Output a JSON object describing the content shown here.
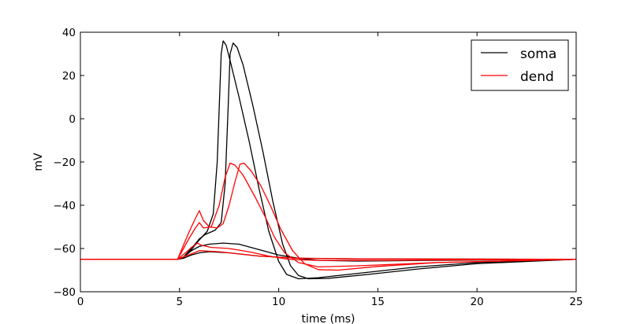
{
  "chart_data": {
    "type": "line",
    "xlabel": "time (ms)",
    "ylabel": "mV",
    "xlim": [
      0,
      25
    ],
    "ylim": [
      -80,
      40
    ],
    "xticks": [
      0,
      5,
      10,
      15,
      20,
      25
    ],
    "yticks": [
      -80,
      -60,
      -40,
      -20,
      0,
      20,
      40
    ],
    "xtick_labels": [
      "0",
      "5",
      "10",
      "15",
      "20",
      "25"
    ],
    "ytick_labels": [
      "−80",
      "−60",
      "−40",
      "−20",
      "0",
      "20",
      "40"
    ],
    "grid": false,
    "legend": {
      "position": "top-right",
      "entries": [
        {
          "label": "soma",
          "color": "#000000"
        },
        {
          "label": "dend",
          "color": "#ff0000"
        }
      ]
    },
    "series": [
      {
        "group": "soma",
        "color": "#000000",
        "points": [
          [
            0,
            -65
          ],
          [
            4.9,
            -65
          ],
          [
            5.2,
            -64.5
          ],
          [
            5.6,
            -63
          ],
          [
            6.0,
            -62
          ],
          [
            6.5,
            -61.5
          ],
          [
            7.5,
            -62
          ],
          [
            9,
            -63.5
          ],
          [
            11,
            -64.5
          ],
          [
            14,
            -64.8
          ],
          [
            25,
            -65
          ]
        ]
      },
      {
        "group": "soma",
        "color": "#000000",
        "points": [
          [
            0,
            -65
          ],
          [
            4.9,
            -65
          ],
          [
            5.2,
            -64
          ],
          [
            5.6,
            -61
          ],
          [
            6.0,
            -59
          ],
          [
            6.5,
            -58
          ],
          [
            7.2,
            -57.5
          ],
          [
            8,
            -58
          ],
          [
            9,
            -60.5
          ],
          [
            10,
            -63
          ],
          [
            11,
            -64.5
          ],
          [
            12,
            -65.5
          ],
          [
            14,
            -65.8
          ],
          [
            18,
            -65.5
          ],
          [
            25,
            -65
          ]
        ]
      },
      {
        "group": "soma",
        "color": "#000000",
        "points": [
          [
            0,
            -65
          ],
          [
            4.9,
            -65
          ],
          [
            5.2,
            -64
          ],
          [
            5.6,
            -60.5
          ],
          [
            6.0,
            -56
          ],
          [
            6.4,
            -52
          ],
          [
            6.7,
            -44
          ],
          [
            6.9,
            -20
          ],
          [
            7.0,
            5
          ],
          [
            7.1,
            30
          ],
          [
            7.2,
            36
          ],
          [
            7.35,
            34
          ],
          [
            7.6,
            25
          ],
          [
            8.0,
            10
          ],
          [
            8.5,
            -10
          ],
          [
            9.0,
            -32
          ],
          [
            9.5,
            -52
          ],
          [
            10.0,
            -66
          ],
          [
            10.4,
            -72
          ],
          [
            11,
            -74
          ],
          [
            12,
            -73.5
          ],
          [
            14,
            -71.5
          ],
          [
            17,
            -68.5
          ],
          [
            20,
            -66.5
          ],
          [
            25,
            -65
          ]
        ]
      },
      {
        "group": "soma",
        "color": "#000000",
        "points": [
          [
            0,
            -65
          ],
          [
            4.9,
            -65
          ],
          [
            5.2,
            -64
          ],
          [
            5.6,
            -60
          ],
          [
            6.0,
            -55.5
          ],
          [
            6.3,
            -53.5
          ],
          [
            6.8,
            -51.5
          ],
          [
            7.1,
            -48
          ],
          [
            7.3,
            -30
          ],
          [
            7.45,
            5
          ],
          [
            7.55,
            30
          ],
          [
            7.7,
            35
          ],
          [
            7.9,
            33
          ],
          [
            8.2,
            25
          ],
          [
            8.7,
            6
          ],
          [
            9.2,
            -15
          ],
          [
            9.7,
            -38
          ],
          [
            10.2,
            -58
          ],
          [
            10.6,
            -68
          ],
          [
            11,
            -72.5
          ],
          [
            11.5,
            -74
          ],
          [
            12.5,
            -73.8
          ],
          [
            14.5,
            -72
          ],
          [
            17,
            -69.5
          ],
          [
            20,
            -67
          ],
          [
            25,
            -65
          ]
        ]
      },
      {
        "group": "dend",
        "color": "#ff0000",
        "points": [
          [
            0,
            -65
          ],
          [
            4.9,
            -65
          ],
          [
            5.3,
            -63.5
          ],
          [
            5.6,
            -62.5
          ],
          [
            6.0,
            -61
          ],
          [
            7,
            -61.5
          ],
          [
            9,
            -63.5
          ],
          [
            11,
            -64.5
          ],
          [
            14,
            -64.8
          ],
          [
            25,
            -65
          ]
        ]
      },
      {
        "group": "dend",
        "color": "#ff0000",
        "points": [
          [
            0,
            -65
          ],
          [
            4.9,
            -65
          ],
          [
            5.3,
            -62
          ],
          [
            5.6,
            -59.5
          ],
          [
            5.9,
            -57.5
          ],
          [
            6.1,
            -58.5
          ],
          [
            6.6,
            -59.5
          ],
          [
            7.5,
            -60
          ],
          [
            8.5,
            -61.5
          ],
          [
            9.5,
            -63.5
          ],
          [
            10.5,
            -65
          ],
          [
            12,
            -65.5
          ],
          [
            15,
            -65.5
          ],
          [
            25,
            -65
          ]
        ]
      },
      {
        "group": "dend",
        "color": "#ff0000",
        "points": [
          [
            0,
            -65
          ],
          [
            4.9,
            -65
          ],
          [
            5.2,
            -60
          ],
          [
            5.5,
            -55
          ],
          [
            5.8,
            -50.5
          ],
          [
            6.0,
            -48
          ],
          [
            6.2,
            -50.5
          ],
          [
            6.6,
            -50
          ],
          [
            7.0,
            -40
          ],
          [
            7.3,
            -27
          ],
          [
            7.55,
            -20.5
          ],
          [
            7.8,
            -21.5
          ],
          [
            8.2,
            -26
          ],
          [
            8.8,
            -36
          ],
          [
            9.3,
            -45
          ],
          [
            9.8,
            -55
          ],
          [
            10.3,
            -62
          ],
          [
            11,
            -66.5
          ],
          [
            12,
            -68.5
          ],
          [
            14,
            -68
          ],
          [
            18,
            -66.5
          ],
          [
            25,
            -65
          ]
        ]
      },
      {
        "group": "dend",
        "color": "#ff0000",
        "points": [
          [
            0,
            -65
          ],
          [
            4.9,
            -65
          ],
          [
            5.15,
            -59.5
          ],
          [
            5.45,
            -53
          ],
          [
            5.75,
            -47
          ],
          [
            6.0,
            -42.5
          ],
          [
            6.2,
            -47
          ],
          [
            6.5,
            -50
          ],
          [
            6.9,
            -50.5
          ],
          [
            7.2,
            -48.5
          ],
          [
            7.5,
            -40
          ],
          [
            7.8,
            -29
          ],
          [
            8.05,
            -21
          ],
          [
            8.25,
            -20.5
          ],
          [
            8.6,
            -24
          ],
          [
            9.1,
            -31
          ],
          [
            9.6,
            -40.5
          ],
          [
            10.1,
            -51
          ],
          [
            10.7,
            -61
          ],
          [
            11.3,
            -67
          ],
          [
            12,
            -69.8
          ],
          [
            13,
            -70
          ],
          [
            15,
            -68.3
          ],
          [
            18,
            -66.5
          ],
          [
            25,
            -65
          ]
        ]
      }
    ]
  }
}
